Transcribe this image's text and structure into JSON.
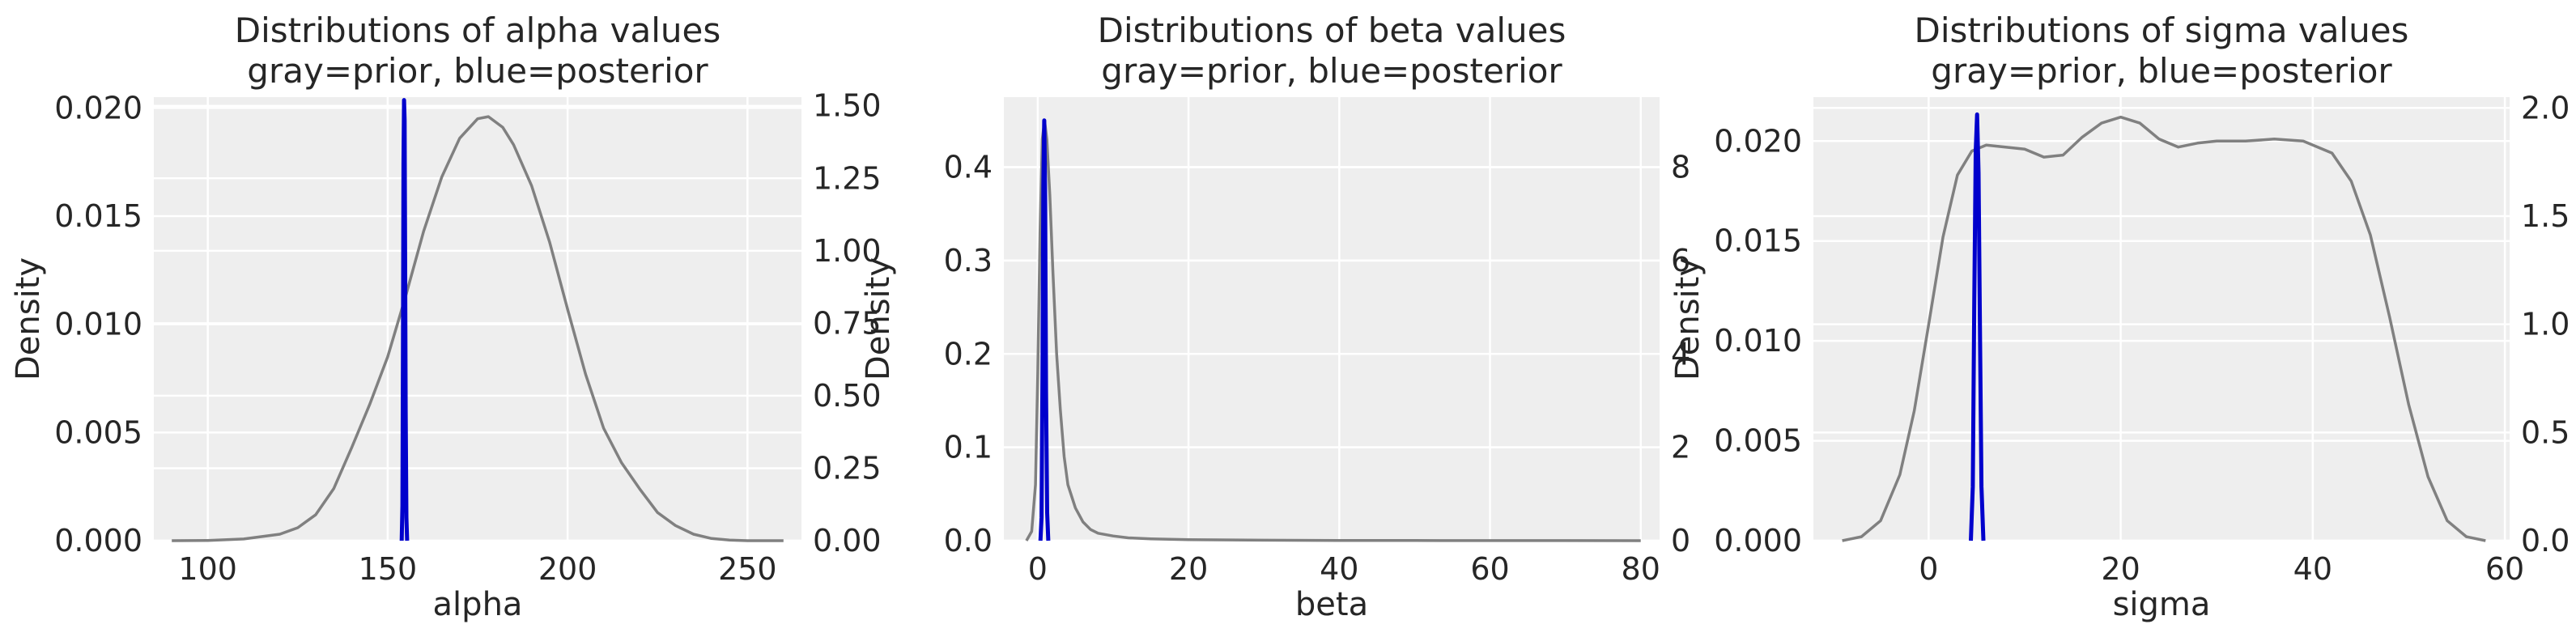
{
  "chart_data": [
    {
      "type": "line",
      "title": "Distributions of alpha values",
      "subtitle": "gray=prior, blue=posterior",
      "xlabel": "alpha",
      "ylabel": "Density",
      "y2label": "",
      "xlim": [
        85,
        265
      ],
      "ylim": [
        0,
        0.0205
      ],
      "y2lim": [
        0,
        1.53
      ],
      "xticks": [
        "100",
        "150",
        "200",
        "250"
      ],
      "yticks": [
        "0.000",
        "0.005",
        "0.010",
        "0.015",
        "0.020"
      ],
      "y2ticks": [
        "0.00",
        "0.25",
        "0.50",
        "0.75",
        "1.00",
        "1.25",
        "1.50"
      ],
      "grid": true,
      "series": [
        {
          "axis": "left",
          "color": "#808080",
          "x": [
            90,
            100,
            110,
            120,
            125,
            130,
            135,
            140,
            145,
            150,
            155,
            160,
            165,
            170,
            175,
            178,
            182,
            185,
            190,
            195,
            200,
            205,
            210,
            215,
            220,
            225,
            230,
            235,
            240,
            245,
            250,
            260
          ],
          "y": [
            0.0,
            1e-05,
            8e-05,
            0.0003,
            0.0006,
            0.0012,
            0.0024,
            0.0043,
            0.0063,
            0.0085,
            0.0113,
            0.0143,
            0.0168,
            0.0186,
            0.0195,
            0.0196,
            0.0191,
            0.0183,
            0.0164,
            0.0138,
            0.0107,
            0.0077,
            0.0052,
            0.0036,
            0.0024,
            0.0013,
            0.0007,
            0.0003,
            0.0001,
            3e-05,
            0.0,
            0.0
          ]
        },
        {
          "axis": "right",
          "color": "#0000cc",
          "x": [
            153.9,
            154.1,
            154.25,
            154.4,
            154.55,
            154.7,
            154.85,
            155.0,
            155.2,
            155.4
          ],
          "y": [
            0.0,
            0.12,
            0.7,
            1.3,
            1.52,
            1.45,
            1.0,
            0.45,
            0.08,
            0.0
          ]
        }
      ]
    },
    {
      "type": "line",
      "title": "Distributions of beta values",
      "subtitle": "gray=prior, blue=posterior",
      "xlabel": "beta",
      "ylabel": "Density",
      "y2label": "",
      "xlim": [
        -4.5,
        82.5
      ],
      "ylim": [
        0,
        0.475
      ],
      "y2lim": [
        0,
        9.5
      ],
      "xticks": [
        "0",
        "20",
        "40",
        "60",
        "80"
      ],
      "yticks": [
        "0.0",
        "0.1",
        "0.2",
        "0.3",
        "0.4"
      ],
      "y2ticks": [
        "0",
        "2",
        "4",
        "6",
        "8"
      ],
      "grid": true,
      "series": [
        {
          "axis": "left",
          "color": "#808080",
          "x": [
            -1.5,
            -0.8,
            -0.3,
            0.0,
            0.3,
            0.6,
            0.9,
            1.2,
            1.6,
            2.0,
            2.5,
            3.0,
            3.5,
            4.0,
            5.0,
            6.0,
            7.0,
            8.0,
            10.0,
            12.0,
            15.0,
            20.0,
            30.0,
            40.0,
            50.0,
            60.0,
            70.0,
            80.0
          ],
          "y": [
            0.0,
            0.01,
            0.06,
            0.18,
            0.33,
            0.43,
            0.45,
            0.43,
            0.37,
            0.29,
            0.2,
            0.14,
            0.09,
            0.06,
            0.035,
            0.02,
            0.012,
            0.008,
            0.005,
            0.003,
            0.002,
            0.001,
            0.0005,
            0.0003,
            0.0002,
            0.0001,
            0.0001,
            0.0
          ]
        },
        {
          "axis": "right",
          "color": "#0000cc",
          "x": [
            0.35,
            0.5,
            0.62,
            0.74,
            0.86,
            0.98,
            1.1,
            1.25,
            1.4
          ],
          "y": [
            0.0,
            0.5,
            3.5,
            7.6,
            9.0,
            7.4,
            3.2,
            0.6,
            0.0
          ]
        }
      ]
    },
    {
      "type": "line",
      "title": "Distributions of sigma values",
      "subtitle": "gray=prior, blue=posterior",
      "xlabel": "sigma",
      "ylabel": "Density",
      "y2label": "",
      "xlim": [
        -12,
        60.5
      ],
      "ylim": [
        0,
        0.0222
      ],
      "y2lim": [
        0,
        2.05
      ],
      "xticks": [
        "0",
        "20",
        "40",
        "60"
      ],
      "yticks": [
        "0.000",
        "0.005",
        "0.010",
        "0.015",
        "0.020"
      ],
      "y2ticks": [
        "0.0",
        "0.5",
        "1.0",
        "1.5",
        "2.0"
      ],
      "grid": true,
      "series": [
        {
          "axis": "left",
          "color": "#808080",
          "x": [
            -9,
            -7,
            -5,
            -3,
            -1.5,
            0,
            1.5,
            3,
            4.5,
            6,
            8,
            10,
            12,
            14,
            16,
            18,
            20,
            22,
            24,
            26,
            28,
            30,
            33,
            36,
            39,
            42,
            44,
            46,
            48,
            50,
            52,
            54,
            56,
            58
          ],
          "y": [
            0.0,
            0.0002,
            0.001,
            0.0033,
            0.0065,
            0.0108,
            0.0152,
            0.0183,
            0.0195,
            0.0198,
            0.0197,
            0.0196,
            0.0192,
            0.0193,
            0.0202,
            0.0209,
            0.0212,
            0.0209,
            0.0201,
            0.0197,
            0.0199,
            0.02,
            0.02,
            0.0201,
            0.02,
            0.0194,
            0.018,
            0.0153,
            0.0112,
            0.0068,
            0.0032,
            0.001,
            0.0002,
            0.0
          ]
        },
        {
          "axis": "right",
          "color": "#0000cc",
          "x": [
            4.4,
            4.6,
            4.75,
            4.9,
            5.05,
            5.2,
            5.35,
            5.5,
            5.7
          ],
          "y": [
            0.0,
            0.25,
            1.1,
            1.8,
            1.97,
            1.7,
            0.95,
            0.25,
            0.0
          ]
        }
      ]
    }
  ]
}
